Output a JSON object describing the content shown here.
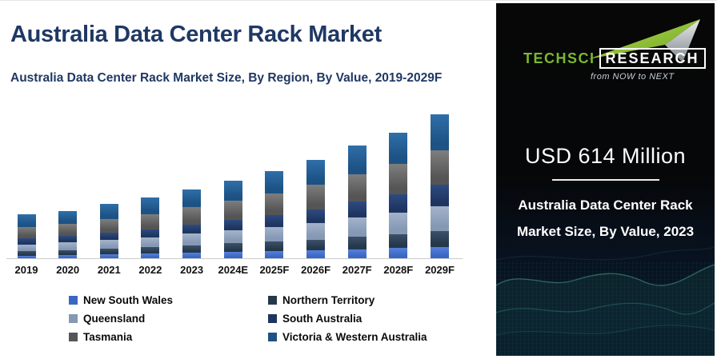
{
  "left_panel": {
    "title": "Australia Data Center Rack Market",
    "subtitle": "Australia Data Center Rack Market Size, By Region, By Value, 2019-2029F"
  },
  "chart_data": {
    "type": "bar",
    "stacked": true,
    "title": "Australia Data Center Rack Market Size, By Region, By Value, 2019-2029F",
    "unit": "USD Million",
    "values_note": "Segment values are approximate, estimated from bar heights; 2023 total labeled as USD 614 Million",
    "y_axis_visible": false,
    "grid": false,
    "legend_position": "bottom",
    "categories": [
      "2019",
      "2020",
      "2021",
      "2022",
      "2023",
      "2024E",
      "2025F",
      "2026F",
      "2027F",
      "2028F",
      "2029F"
    ],
    "totals": [
      390,
      425,
      485,
      540,
      614,
      695,
      780,
      880,
      1005,
      1125,
      1285
    ],
    "series": [
      {
        "name": "New South Wales",
        "fill": "#3A66C4",
        "fill_light": "#5580DA",
        "values": [
          25,
          30,
          36,
          42,
          49,
          56,
          62,
          70,
          80,
          90,
          103
        ]
      },
      {
        "name": "Northern Territory",
        "fill": "#24384C",
        "fill_light": "#3C5168",
        "values": [
          40,
          45,
          51,
          57,
          68,
          77,
          86,
          97,
          111,
          124,
          141
        ]
      },
      {
        "name": "Queensland",
        "fill": "#8598B4",
        "fill_light": "#A3B3CA",
        "values": [
          60,
          68,
          78,
          88,
          104,
          118,
          133,
          150,
          171,
          191,
          218
        ]
      },
      {
        "name": "South Australia",
        "fill": "#1E3560",
        "fill_light": "#2E4B80",
        "values": [
          53,
          57,
          64,
          71,
          80,
          92,
          105,
          122,
          143,
          166,
          198
        ]
      },
      {
        "name": "Tasmania",
        "fill": "#555555",
        "fill_light": "#7E7E7E",
        "values": [
          100,
          106,
          121,
          134,
          153,
          172,
          192,
          215,
          244,
          270,
          305
        ]
      },
      {
        "name": "Victoria & Western Australia",
        "fill": "#1D5284",
        "fill_light": "#2F6FA9",
        "values": [
          112,
          119,
          135,
          148,
          160,
          180,
          202,
          226,
          256,
          284,
          320
        ]
      }
    ],
    "legend_columns": [
      [
        "New South Wales",
        "Queensland",
        "Tasmania"
      ],
      [
        "Northern Territory",
        "South Australia",
        "Victoria & Western Australia"
      ]
    ]
  },
  "right_panel": {
    "logo": {
      "brand_primary": "TechSci",
      "brand_secondary": "Research",
      "tagline": "from NOW to NEXT",
      "brand_green": "#7ab82c"
    },
    "value": "USD 614 Million",
    "caption_line1": "Australia Data Center Rack",
    "caption_line2": "Market Size, By Value, 2023"
  },
  "colors": {
    "title_navy": "#1F3864",
    "panel_background_top": "#070707",
    "panel_background_bottom": "#0b1b2e",
    "wave_teal": "#4DA893",
    "axis_line": "#cccccc"
  }
}
